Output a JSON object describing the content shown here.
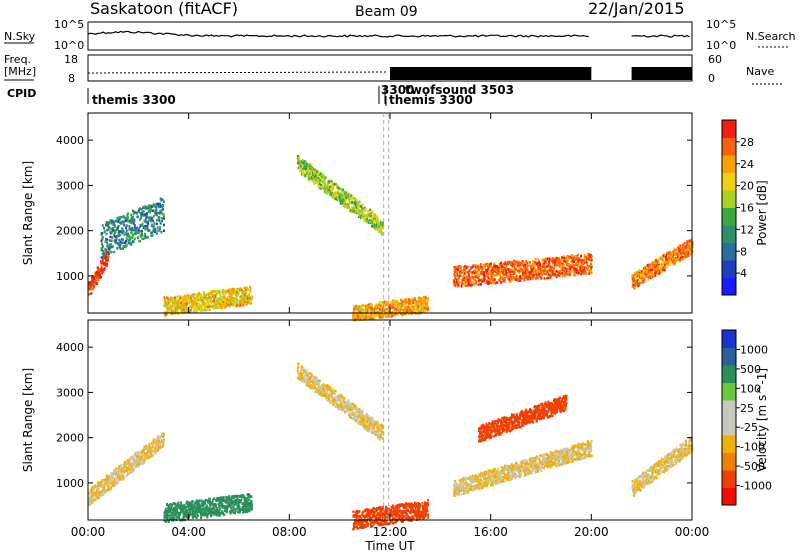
{
  "header": {
    "station": "Saskatoon (fitACF)",
    "beam": "Beam 09",
    "date": "22/Jan/2015"
  },
  "top_panels": {
    "nsky_label": "N.Sky",
    "nsky_ticks": [
      "10^5",
      "10^0"
    ],
    "nsearch_label": "N.Search",
    "nsearch_ticks": [
      "10^5",
      "10^0"
    ],
    "freq_label_line1": "Freq.",
    "freq_label_line2": "[MHz]",
    "freq_ticks": [
      "18",
      "8"
    ],
    "nave_label": "Nave",
    "nave_ticks": [
      "60",
      "0"
    ],
    "cpid_label": "CPID",
    "cpid_entries": [
      {
        "time": "00:00",
        "text": "themis 3300"
      },
      {
        "time": "11:45",
        "text": "3300"
      },
      {
        "time": "11:58",
        "text": "twofsound 3503"
      },
      {
        "time": "12:00",
        "text": "themis 3300"
      }
    ]
  },
  "colors": {
    "power_scale": [
      "#1a1aff",
      "#1f3fb8",
      "#2a6ea0",
      "#2f8f6a",
      "#3aa840",
      "#a8d21c",
      "#f0d010",
      "#f8a000",
      "#f86010",
      "#f02010"
    ],
    "velocity_scale": [
      "#1a33cc",
      "#2a5f9a",
      "#2a8f5a",
      "#6ac840",
      "#c8c8c0",
      "#c8c8c0",
      "#f0b000",
      "#f08000",
      "#f04000",
      "#f01000"
    ]
  },
  "chart_data": [
    {
      "type": "heatmap",
      "title": "",
      "ylabel": "Slant Range [km]",
      "xlabel": "Time UT",
      "x_ticks": [
        "00:00",
        "04:00",
        "08:00",
        "12:00",
        "16:00",
        "20:00",
        "00:00"
      ],
      "y_ticks": [
        "1000",
        "2000",
        "3000",
        "4000"
      ],
      "xlim_hours": [
        0,
        24
      ],
      "ylim_km": [
        180,
        4600
      ],
      "colorbar": {
        "label": "Power [dB]",
        "ticks": [
          "4",
          "8",
          "12",
          "16",
          "20",
          "24",
          "28"
        ],
        "range": [
          0,
          30
        ]
      },
      "data_gaps_hours": [
        [
          20.0,
          21.6
        ]
      ],
      "features": [
        {
          "t_start": 0.0,
          "t_end": 0.8,
          "r_start": 700,
          "r_end": 1500,
          "level": 28
        },
        {
          "t_start": 0.5,
          "t_end": 3.0,
          "r_start": 1800,
          "r_end": 2400,
          "level": 10
        },
        {
          "t_start": 8.3,
          "t_end": 11.7,
          "r_start": 3500,
          "r_end": 2100,
          "level": 16
        },
        {
          "t_start": 3.0,
          "t_end": 6.5,
          "r_start": 350,
          "r_end": 600,
          "level": 20
        },
        {
          "t_start": 10.5,
          "t_end": 13.5,
          "r_start": 200,
          "r_end": 400,
          "level": 22
        },
        {
          "t_start": 14.5,
          "t_end": 20.0,
          "r_start": 1000,
          "r_end": 1300,
          "level": 26
        },
        {
          "t_start": 21.6,
          "t_end": 24.0,
          "r_start": 900,
          "r_end": 1700,
          "level": 24
        }
      ]
    },
    {
      "type": "heatmap",
      "title": "",
      "ylabel": "Slant Range [km]",
      "xlabel": "Time UT",
      "x_ticks": [
        "00:00",
        "04:00",
        "08:00",
        "12:00",
        "16:00",
        "20:00",
        "00:00"
      ],
      "y_ticks": [
        "1000",
        "2000",
        "3000",
        "4000"
      ],
      "xlim_hours": [
        0,
        24
      ],
      "ylim_km": [
        180,
        4600
      ],
      "colorbar": {
        "label": "Velocity [m s^-1]",
        "ticks": [
          "1000",
          "500",
          "100",
          "25",
          "-25",
          "-100",
          "-500",
          "-1000"
        ],
        "range": [
          -1000,
          1000
        ]
      },
      "data_gaps_hours": [
        [
          20.0,
          21.6
        ]
      ],
      "features": [
        {
          "t_start": 0.0,
          "t_end": 3.0,
          "r_start": 700,
          "r_end": 2000,
          "level": 0
        },
        {
          "t_start": 3.0,
          "t_end": 6.5,
          "r_start": 350,
          "r_end": 600,
          "level": 150
        },
        {
          "t_start": 8.3,
          "t_end": 11.7,
          "r_start": 3500,
          "r_end": 2100,
          "level": 0
        },
        {
          "t_start": 10.5,
          "t_end": 13.5,
          "r_start": 200,
          "r_end": 450,
          "level": -150
        },
        {
          "t_start": 14.5,
          "t_end": 20.0,
          "r_start": 900,
          "r_end": 1800,
          "level": 0
        },
        {
          "t_start": 15.5,
          "t_end": 19.0,
          "r_start": 2100,
          "r_end": 2800,
          "level": -300
        },
        {
          "t_start": 21.6,
          "t_end": 24.0,
          "r_start": 900,
          "r_end": 1900,
          "level": 0
        }
      ]
    }
  ]
}
